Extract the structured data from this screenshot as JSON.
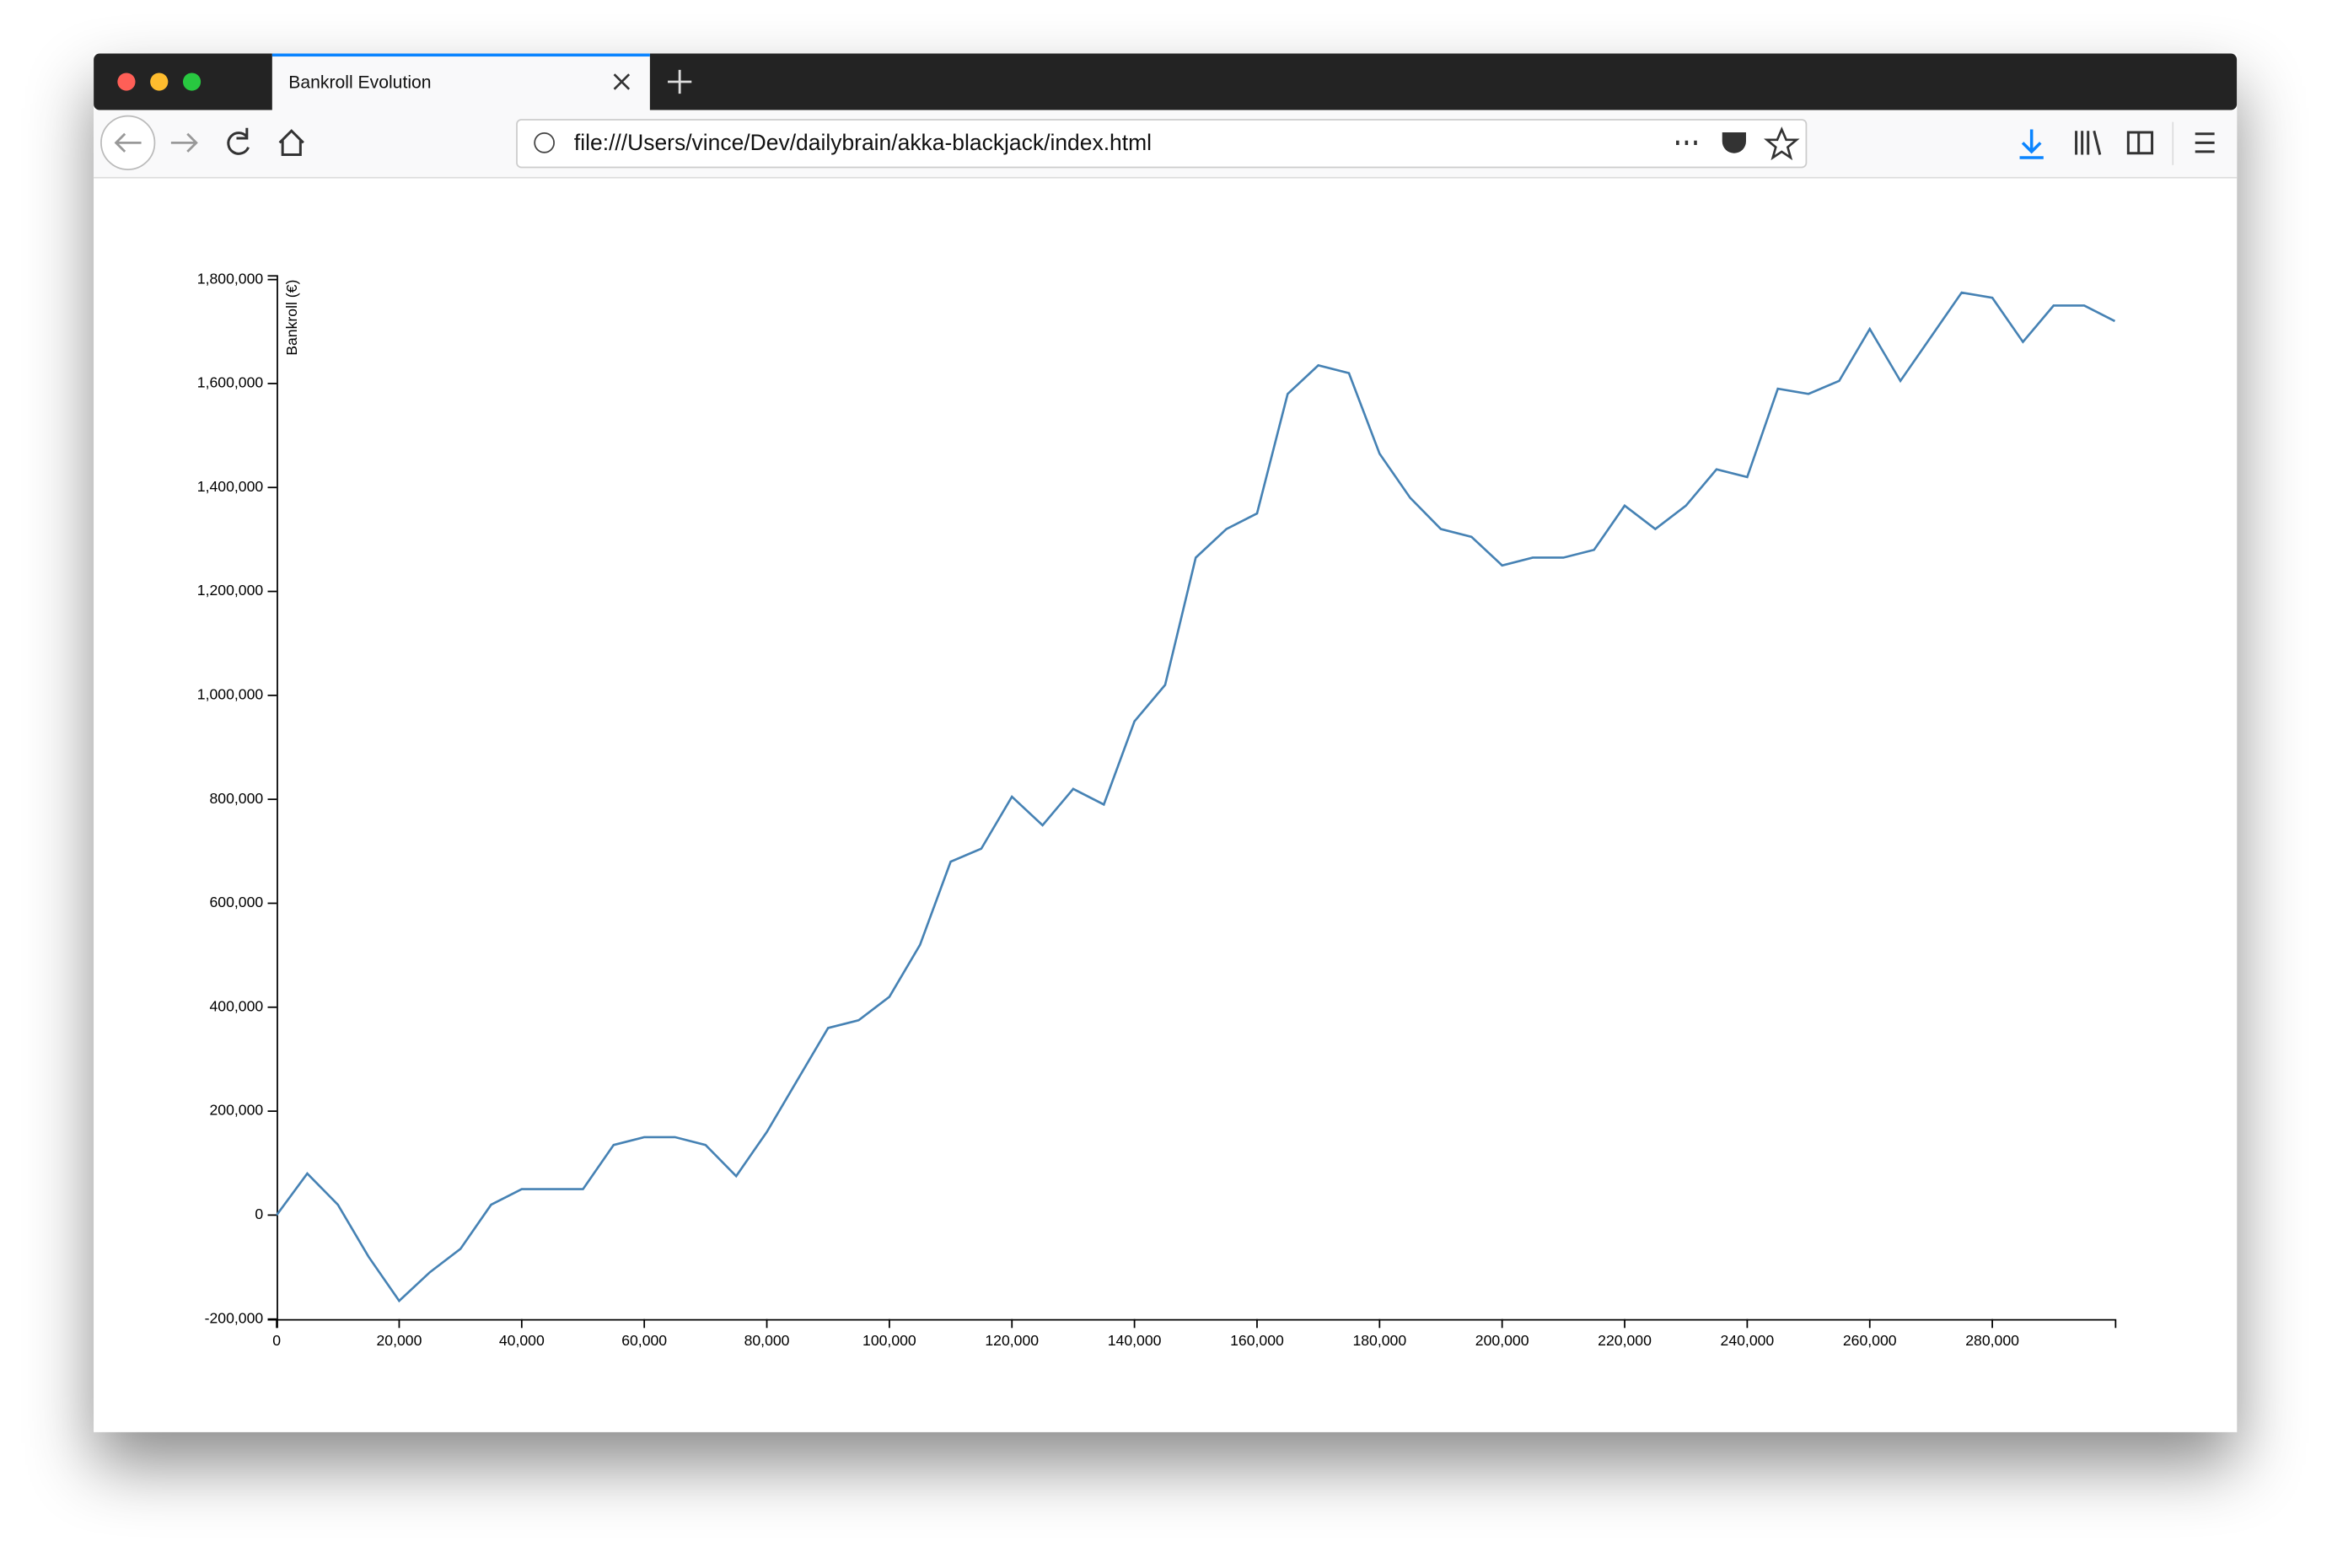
{
  "browser": {
    "tab_title": "Bankroll Evolution",
    "url": "file:///Users/vince/Dev/dailybrain/akka-blackjack/index.html"
  },
  "chart_data": {
    "type": "line",
    "y_label": "Bankroll (€)",
    "color": "#4682b4",
    "x": [
      0,
      5000,
      10000,
      15000,
      20000,
      25000,
      30000,
      35000,
      40000,
      45000,
      50000,
      55000,
      60000,
      65000,
      70000,
      75000,
      80000,
      85000,
      90000,
      95000,
      100000,
      105000,
      110000,
      115000,
      120000,
      125000,
      130000,
      135000,
      140000,
      145000,
      150000,
      155000,
      160000,
      165000,
      170000,
      175000,
      180000,
      185000,
      190000,
      195000,
      200000,
      205000,
      210000,
      215000,
      220000,
      225000,
      230000,
      235000,
      240000,
      245000,
      250000,
      255000,
      260000,
      265000,
      270000,
      275000,
      280000,
      285000,
      290000,
      295000,
      300000
    ],
    "values": [
      0,
      80000,
      20000,
      -80000,
      -165000,
      -110000,
      -65000,
      20000,
      50000,
      50000,
      50000,
      135000,
      150000,
      150000,
      135000,
      75000,
      160000,
      260000,
      360000,
      375000,
      420000,
      520000,
      680000,
      705000,
      805000,
      750000,
      820000,
      790000,
      950000,
      1020000,
      1265000,
      1320000,
      1350000,
      1580000,
      1635000,
      1620000,
      1465000,
      1380000,
      1320000,
      1305000,
      1250000,
      1265000,
      1265000,
      1280000,
      1365000,
      1320000,
      1365000,
      1435000,
      1420000,
      1590000,
      1580000,
      1605000,
      1705000,
      1605000,
      1690000,
      1775000,
      1765000,
      1680000,
      1750000,
      1750000,
      1720000
    ],
    "xlim": [
      0,
      300000
    ],
    "ylim": [
      -200000,
      1800000
    ],
    "xticks": [
      0,
      {
        "value": 20000,
        "label": "20,000"
      },
      {
        "value": 40000,
        "label": "40,000"
      },
      {
        "value": 60000,
        "label": "60,000"
      },
      {
        "value": 80000,
        "label": "80,000"
      },
      {
        "value": 100000,
        "label": "100,000"
      },
      {
        "value": 120000,
        "label": "120,000"
      },
      {
        "value": 140000,
        "label": "140,000"
      },
      {
        "value": 160000,
        "label": "160,000"
      },
      {
        "value": 180000,
        "label": "180,000"
      },
      {
        "value": 200000,
        "label": "200,000"
      },
      {
        "value": 220000,
        "label": "220,000"
      },
      {
        "value": 240000,
        "label": "240,000"
      },
      {
        "value": 260000,
        "label": "260,000"
      },
      {
        "value": 280000,
        "label": "280,000"
      }
    ],
    "yticks": [
      {
        "value": -200000,
        "label": "-200,000"
      },
      0,
      {
        "value": 200000,
        "label": "200,000"
      },
      {
        "value": 400000,
        "label": "400,000"
      },
      {
        "value": 600000,
        "label": "600,000"
      },
      {
        "value": 800000,
        "label": "800,000"
      },
      {
        "value": 1000000,
        "label": "1,000,000"
      },
      {
        "value": 1200000,
        "label": "1,200,000"
      },
      {
        "value": 1400000,
        "label": "1,400,000"
      },
      {
        "value": 1600000,
        "label": "1,600,000"
      },
      {
        "value": 1800000,
        "label": "1,800,000"
      }
    ]
  }
}
